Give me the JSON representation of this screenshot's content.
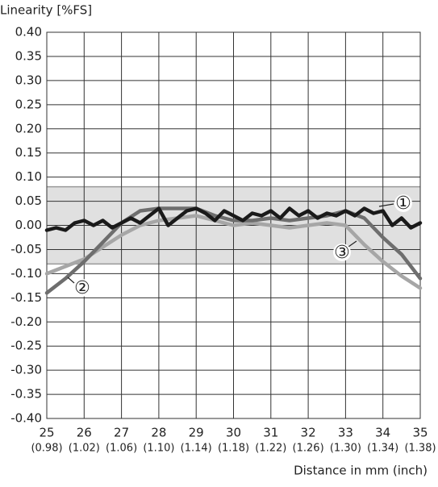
{
  "chart_data": {
    "type": "line",
    "y_label": "Linearity [%FS]",
    "x_label": "Distance in mm (inch)",
    "xlim": [
      25,
      35
    ],
    "ylim": [
      -0.4,
      0.4
    ],
    "xticks": [
      25,
      26,
      27,
      28,
      29,
      30,
      31,
      32,
      33,
      34,
      35
    ],
    "x_sublabels": [
      "(0.98)",
      "(1.02)",
      "(1.06)",
      "(1.10)",
      "(1.14)",
      "(1.18)",
      "(1.22)",
      "(1.26)",
      "(1.30)",
      "(1.34)",
      "(1.38)"
    ],
    "yticks": [
      {
        "value": 0.4,
        "label": "0.40"
      },
      {
        "value": 0.35,
        "label": "0.35"
      },
      {
        "value": 0.3,
        "label": "0.30"
      },
      {
        "value": 0.25,
        "label": "0.25"
      },
      {
        "value": 0.2,
        "label": "0.20"
      },
      {
        "value": 0.15,
        "label": "0.15"
      },
      {
        "value": 0.1,
        "label": "0.10"
      },
      {
        "value": 0.05,
        "label": "0.05"
      },
      {
        "value": 0,
        "label": "0.00"
      },
      {
        "value": -0.05,
        "label": "-0.05"
      },
      {
        "value": -0.1,
        "label": "-0.10"
      },
      {
        "value": -0.15,
        "label": "-0.15"
      },
      {
        "value": -0.2,
        "label": "-0.20"
      },
      {
        "value": -0.25,
        "label": "-0.25"
      },
      {
        "value": -0.3,
        "label": "-0.30"
      },
      {
        "value": -0.35,
        "label": "-0.35"
      },
      {
        "value": -0.4,
        "label": "-0.40"
      }
    ],
    "grid": true,
    "band": [
      -0.08,
      0.08
    ],
    "band_color": "#e0e0e0",
    "series": [
      {
        "name": "①",
        "color": "#1a1a1a",
        "x": [
          25,
          25.25,
          25.5,
          25.75,
          26,
          26.25,
          26.5,
          26.75,
          27,
          27.25,
          27.5,
          27.75,
          28,
          28.25,
          28.5,
          28.75,
          29,
          29.25,
          29.5,
          29.75,
          30,
          30.25,
          30.5,
          30.75,
          31,
          31.25,
          31.5,
          31.75,
          32,
          32.25,
          32.5,
          32.75,
          33,
          33.25,
          33.5,
          33.75,
          34,
          34.25,
          34.5,
          34.75,
          35
        ],
        "values": [
          -0.01,
          -0.005,
          -0.01,
          0.005,
          0.01,
          0.0,
          0.01,
          -0.005,
          0.005,
          0.015,
          0.005,
          0.02,
          0.035,
          0.0,
          0.015,
          0.03,
          0.035,
          0.025,
          0.01,
          0.03,
          0.02,
          0.01,
          0.025,
          0.02,
          0.03,
          0.015,
          0.035,
          0.02,
          0.03,
          0.015,
          0.025,
          0.02,
          0.03,
          0.02,
          0.035,
          0.025,
          0.03,
          0.0,
          0.015,
          -0.005,
          0.005
        ]
      },
      {
        "name": "②",
        "color": "#6e6e6e",
        "x": [
          25,
          25.5,
          26,
          26.5,
          27,
          27.5,
          28,
          28.5,
          29,
          29.5,
          30,
          30.5,
          31,
          31.5,
          32,
          32.5,
          33,
          33.5,
          34,
          34.5,
          35
        ],
        "values": [
          -0.14,
          -0.11,
          -0.075,
          -0.035,
          0.005,
          0.03,
          0.035,
          0.035,
          0.035,
          0.02,
          0.01,
          0.01,
          0.015,
          0.01,
          0.015,
          0.02,
          0.03,
          0.015,
          -0.025,
          -0.06,
          -0.11
        ]
      },
      {
        "name": "③",
        "color": "#a6a6a6",
        "x": [
          25,
          25.5,
          26,
          26.5,
          27,
          27.5,
          28,
          28.5,
          29,
          29.5,
          30,
          30.5,
          31,
          31.5,
          32,
          32.5,
          33,
          33.5,
          34,
          34.5,
          35
        ],
        "values": [
          -0.1,
          -0.085,
          -0.07,
          -0.045,
          -0.02,
          0.0,
          0.01,
          0.015,
          0.02,
          0.01,
          0.0,
          0.005,
          0.0,
          -0.005,
          0.0,
          0.005,
          0.0,
          -0.04,
          -0.075,
          -0.105,
          -0.13
        ]
      }
    ]
  }
}
